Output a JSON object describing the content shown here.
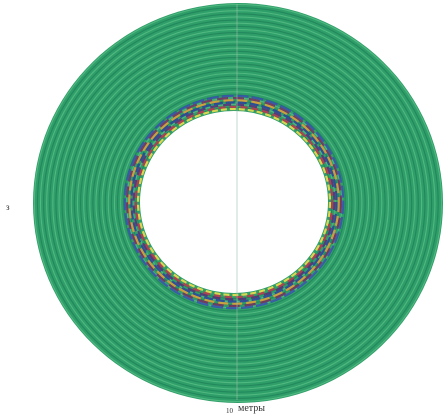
{
  "figure": {
    "left_label": "з",
    "bottom_number": "10",
    "bottom_label": "метры"
  }
}
